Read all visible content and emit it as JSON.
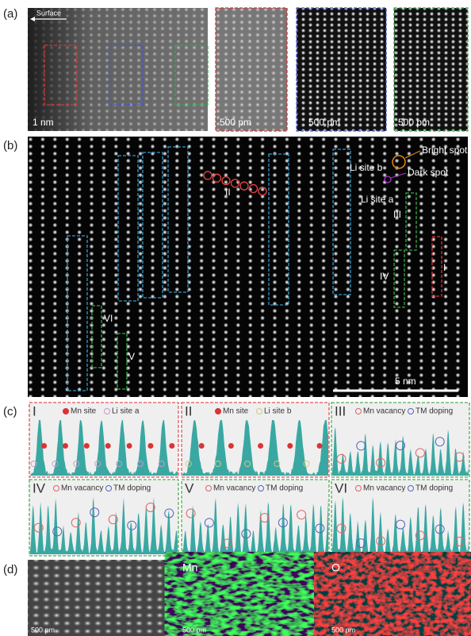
{
  "panels": {
    "a": {
      "label": "(a)",
      "surface": "Surface",
      "scale_main": "1 nm",
      "scale_insets": [
        "500 pm",
        "500 pm",
        "500 pm"
      ]
    },
    "b": {
      "label": "(b)",
      "annotations": {
        "bright_spot": "Bright spot",
        "dark_spot": "Dark spot",
        "li_site_b": "Li site b",
        "li_site_a": "Li site a"
      },
      "regions": [
        "I",
        "II",
        "III",
        "IV",
        "V",
        "VI"
      ],
      "scale": "5 nm"
    },
    "c": {
      "label": "(c)",
      "profiles": [
        {
          "id": "I",
          "legend": [
            "Mn site",
            "Li site a"
          ]
        },
        {
          "id": "II",
          "legend": [
            "Mn site",
            "Li site b"
          ]
        },
        {
          "id": "III",
          "legend": [
            "Mn vacancy",
            "TM doping"
          ]
        },
        {
          "id": "IV",
          "legend": [
            "Mn vacancy",
            "TM doping"
          ]
        },
        {
          "id": "V",
          "legend": [
            "Mn vacancy",
            "TM doping"
          ]
        },
        {
          "id": "VI",
          "legend": [
            "Mn vacancy",
            "TM doping"
          ]
        }
      ]
    },
    "d": {
      "label": "(d)",
      "maps": [
        {
          "scale": "500 pm"
        },
        {
          "element": "Mn",
          "scale": "500 pm"
        },
        {
          "element": "O",
          "scale": "500 pm"
        }
      ]
    }
  }
}
